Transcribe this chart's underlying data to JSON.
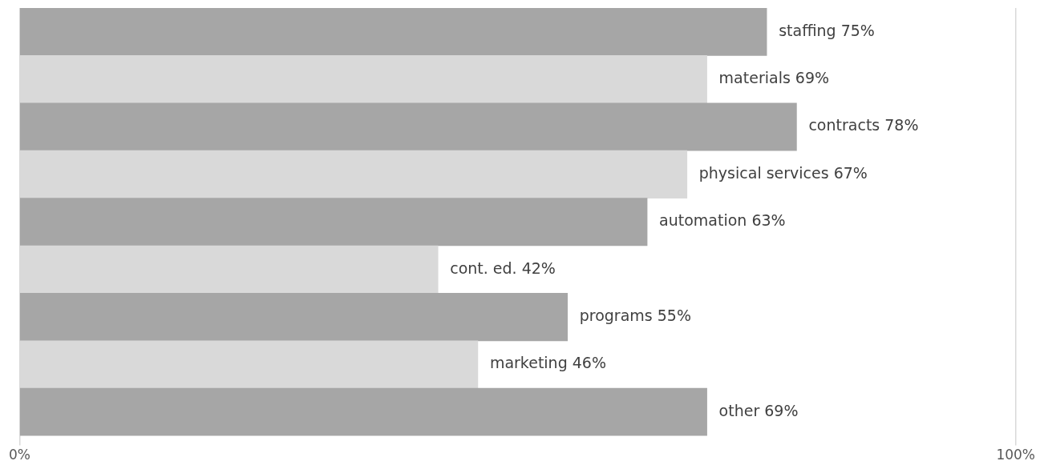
{
  "chart_data": {
    "type": "bar",
    "orientation": "horizontal",
    "categories": [
      null,
      null,
      null,
      null,
      null,
      null,
      null,
      null,
      null
    ],
    "values": [
      75,
      69,
      78,
      67,
      63,
      42,
      55,
      46,
      69
    ],
    "colors": [
      "#a6a6a6",
      "#d9d9d9",
      "#a6a6a6",
      "#d9d9d9",
      "#a6a6a6",
      "#d9d9d9",
      "#a6a6a6",
      "#d9d9d9",
      "#a6a6a6"
    ],
    "value_labels": [
      "staffing 75%",
      "materials 69%",
      "contracts 78%",
      "physical services 67%",
      "automation 63%",
      "cont. ed. 42%",
      "programs 55%",
      "marketing 46%",
      "other 69%"
    ],
    "xlim": [
      0,
      100
    ],
    "xticks": [
      {
        "value": 0,
        "label": "0%"
      },
      {
        "value": 100,
        "label": "100%"
      }
    ],
    "grid": "x"
  }
}
